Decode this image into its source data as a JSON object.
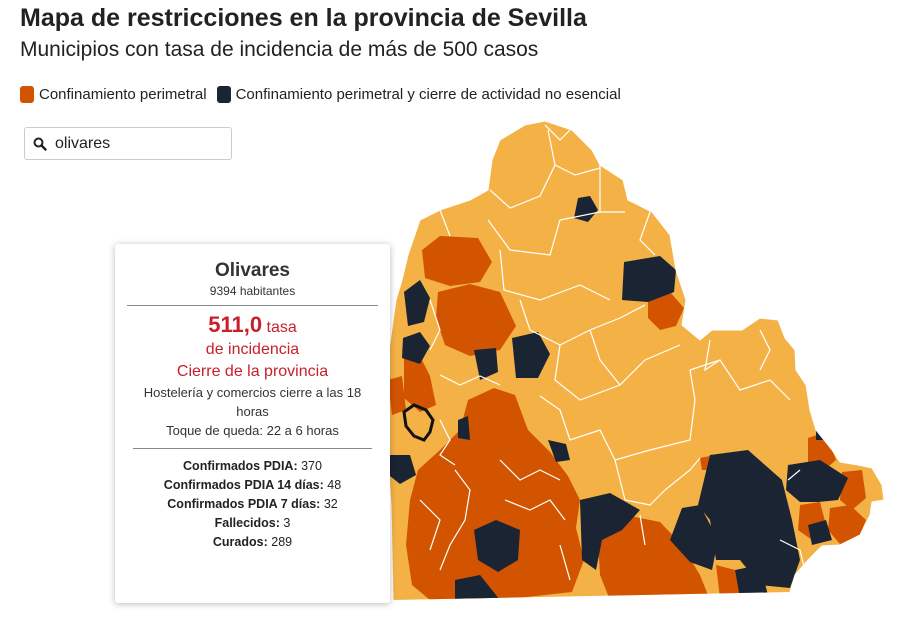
{
  "header": {
    "title": "Mapa de restricciones en la provincia de Sevilla",
    "subtitle": "Municipios con tasa de incidencia de más de 500 casos"
  },
  "legend": [
    {
      "label": "Confinamiento perimetral",
      "color": "#d35400"
    },
    {
      "label": "Confinamiento perimetral y cierre de actividad no esencial",
      "color": "#1a2433"
    }
  ],
  "search": {
    "value": "olivares",
    "icon": "search-icon"
  },
  "colors": {
    "base": "#f4b246",
    "orange": "#d35400",
    "navy": "#1a2433",
    "border": "#ffffff"
  },
  "tooltip": {
    "name": "Olivares",
    "population": "9394 habitantes",
    "rate_value": "511,0",
    "rate_word": "tasa",
    "rate_label": "de incidencia",
    "status": "Cierre de la provincia",
    "line1": "Hostelería y comercios cierre a las 18",
    "line2": "horas",
    "curfew": "Toque de queda: 22 a 6 horas",
    "stats": [
      {
        "label": "Confirmados PDIA:",
        "value": "370"
      },
      {
        "label": "Confirmados PDIA 14 días:",
        "value": "48"
      },
      {
        "label": "Confirmados PDIA 7 días:",
        "value": "32"
      },
      {
        "label": "Fallecidos:",
        "value": "3"
      },
      {
        "label": "Curados:",
        "value": "289"
      }
    ]
  }
}
